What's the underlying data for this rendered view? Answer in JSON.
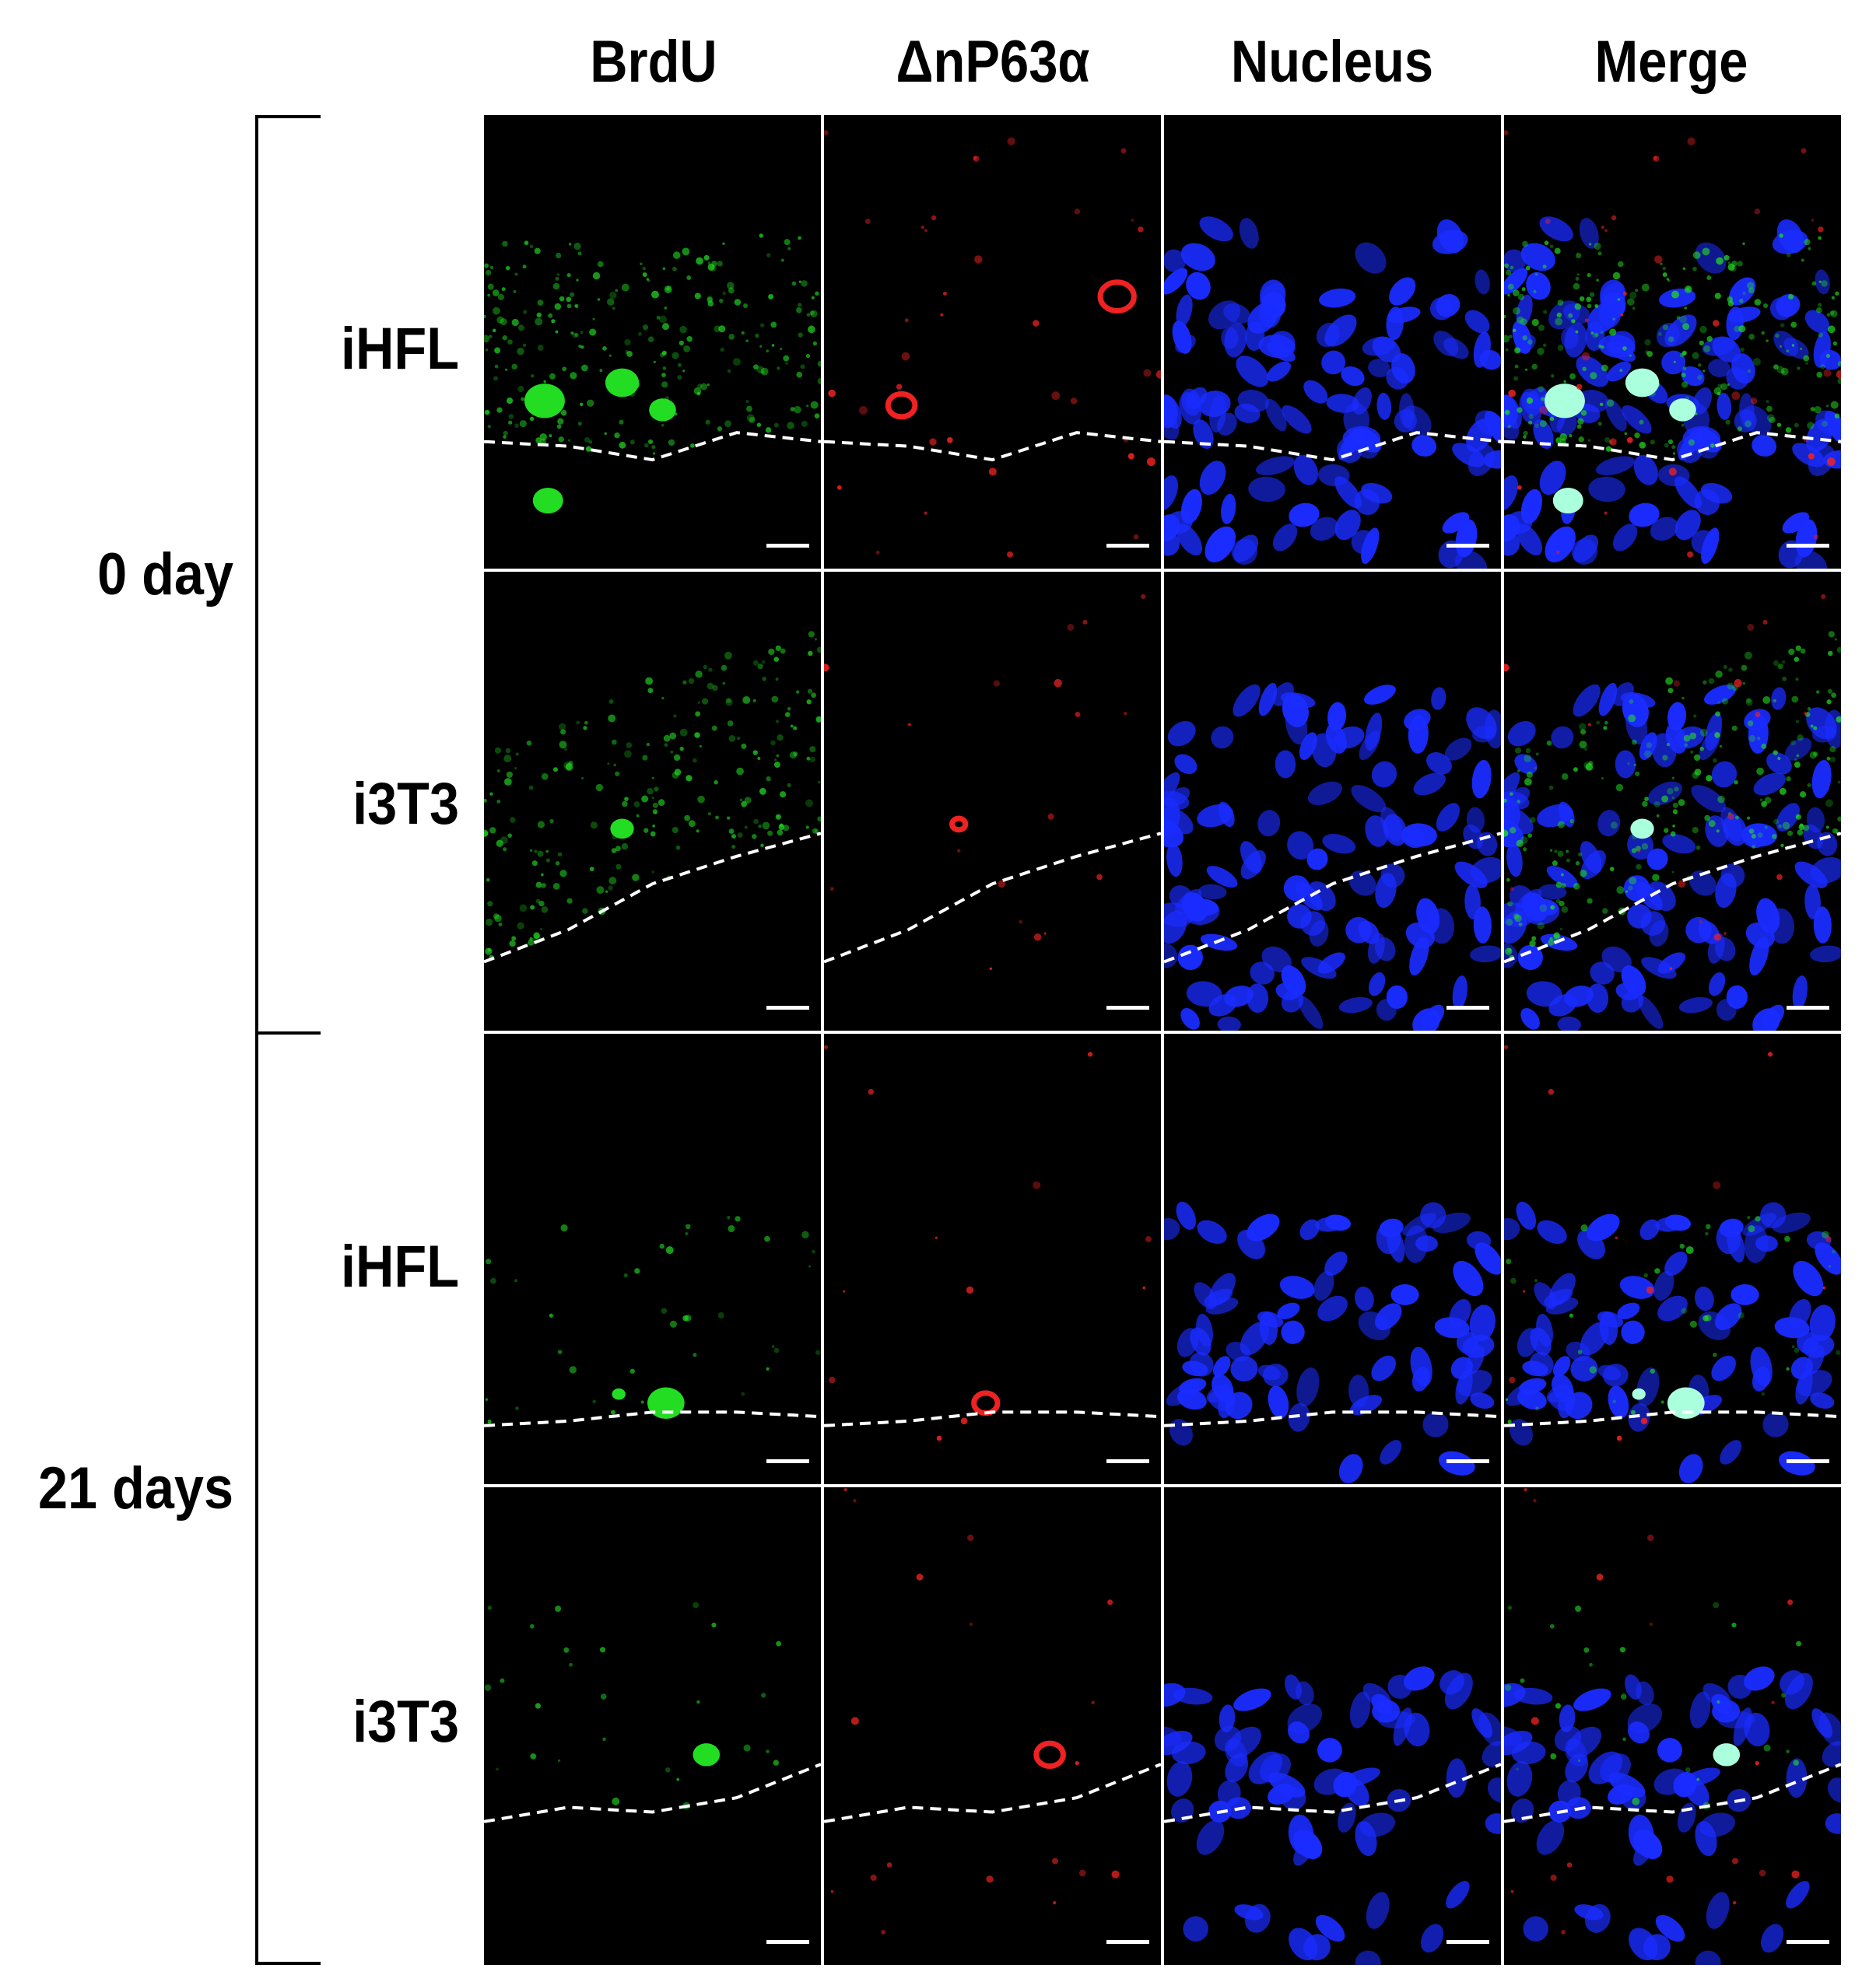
{
  "columns": [
    "BrdU",
    "ΔnP63α",
    "Nucleus",
    "Merge"
  ],
  "groups": [
    {
      "label": "0 day",
      "rows": [
        "iHFL",
        "i3T3"
      ]
    },
    {
      "label": "21 days",
      "rows": [
        "iHFL",
        "i3T3"
      ]
    }
  ],
  "colors": {
    "brdu": "#22dd22",
    "p63": "#ee2222",
    "nucleus": "#1a2cff",
    "merge_overlap": "#aaffdd",
    "background": "#000000",
    "dashed_line": "#ffffff"
  }
}
